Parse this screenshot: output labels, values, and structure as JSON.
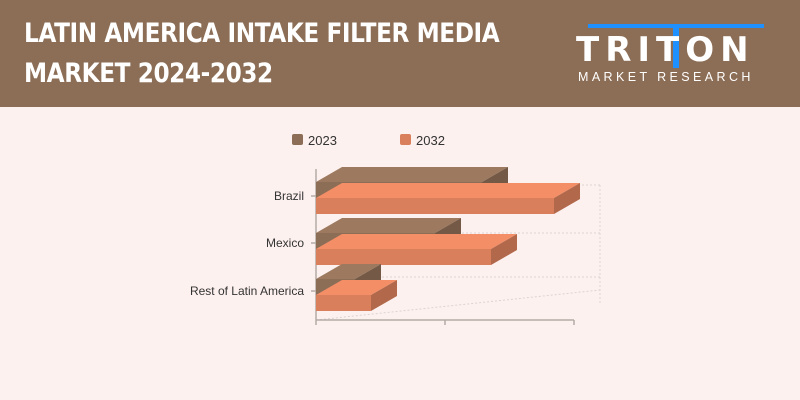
{
  "header": {
    "title_line1": "LATIN AMERICA INTAKE FILTER MEDIA",
    "title_line2": "MARKET 2024-2032",
    "logo_word": "TRITON",
    "logo_tagline": "MARKET RESEARCH"
  },
  "colors": {
    "header_bg": "#8c6d55",
    "series_2023": "#8c6d55",
    "series_2032": "#d97f5c",
    "logo_accent": "#1e90ff"
  },
  "chart_data": {
    "type": "bar",
    "orientation": "horizontal",
    "style": "3d",
    "categories": [
      "Brazil",
      "Mexico",
      "Rest of Latin America"
    ],
    "series": [
      {
        "name": "2023",
        "values": [
          166,
          119,
          39
        ]
      },
      {
        "name": "2032",
        "values": [
          238,
          175,
          55
        ]
      }
    ],
    "xlim": [
      0,
      260
    ],
    "legend": "top-center",
    "grid": true
  }
}
